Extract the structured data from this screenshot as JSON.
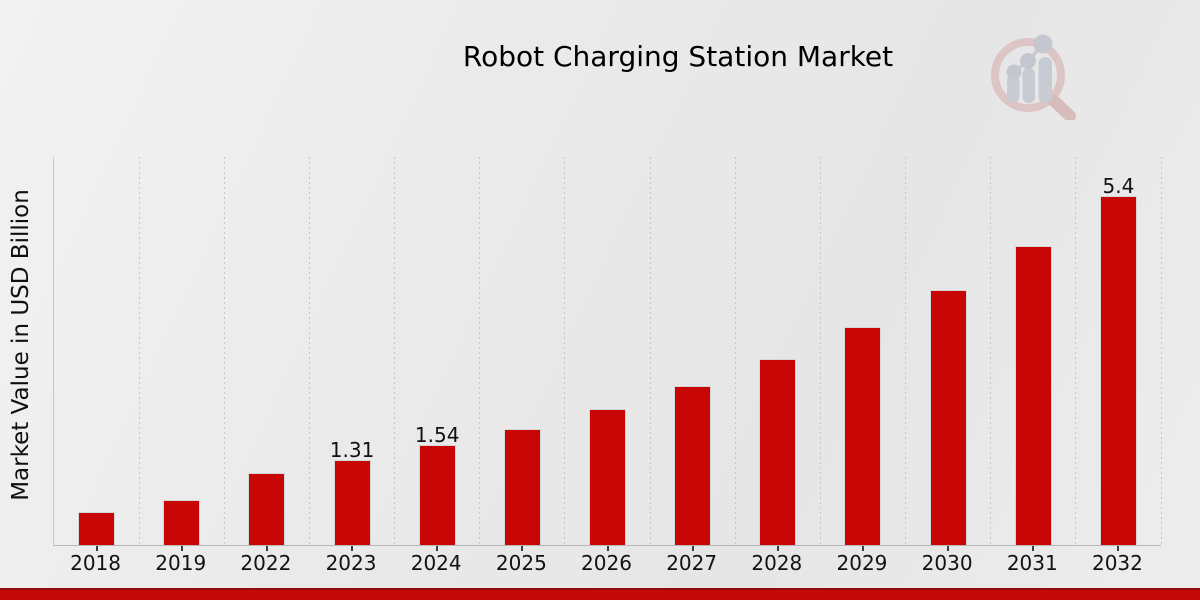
{
  "page": {
    "bottom_accent_strip_color": "#c50909",
    "bottom_accent_strip_edge_color": "#8e0b0b",
    "background_color": "#e9e9e9"
  },
  "logo": {
    "name": "market-research-watermark-logo",
    "description": "faint magnifying glass containing bar chart with rising dot trend"
  },
  "chart_data": {
    "type": "bar",
    "title": "Robot Charging Station Market",
    "xlabel": "",
    "ylabel": "Market Value in USD Billion",
    "categories": [
      "2018",
      "2019",
      "2022",
      "2023",
      "2024",
      "2025",
      "2026",
      "2027",
      "2028",
      "2029",
      "2030",
      "2031",
      "2032"
    ],
    "values": [
      0.51,
      0.69,
      1.12,
      1.31,
      1.54,
      1.8,
      2.11,
      2.46,
      2.88,
      3.37,
      3.95,
      4.62,
      5.4
    ],
    "bar_labels": {
      "2023": "1.31",
      "2024": "1.54",
      "2032": "5.4"
    },
    "ylim": [
      0,
      6
    ],
    "y_axis_tick_labels_visible": false,
    "grid": "vertical dotted category separators",
    "legend_position": "none",
    "bar_color": "#c90606"
  }
}
